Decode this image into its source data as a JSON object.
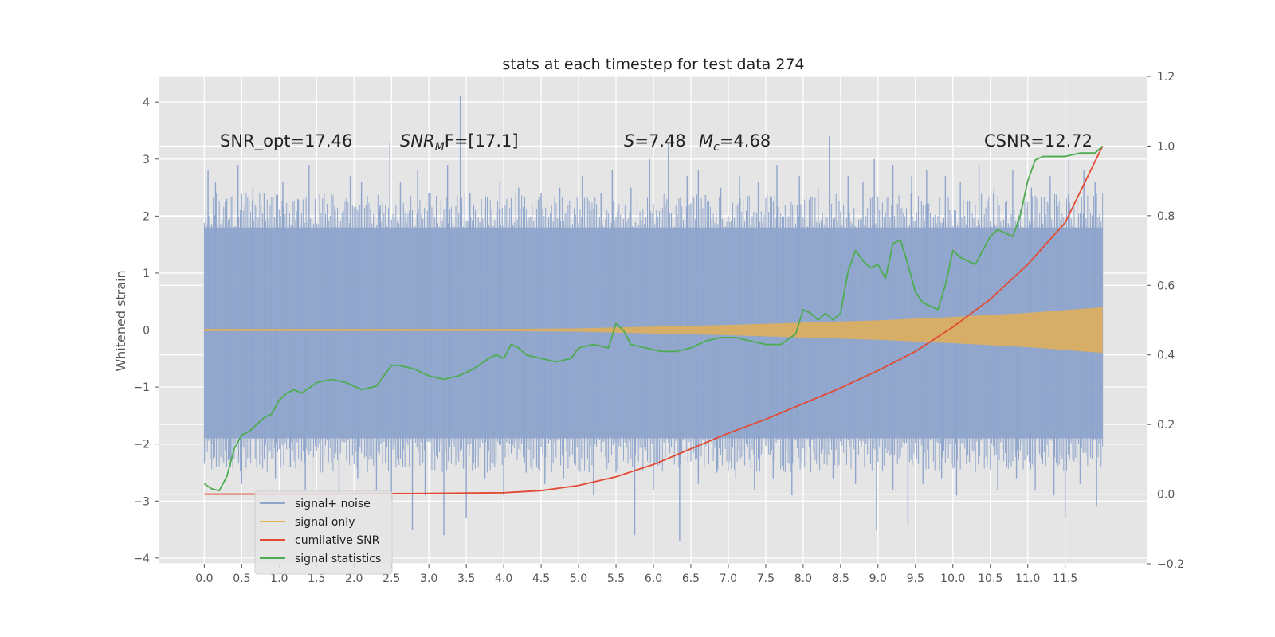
{
  "chart_data": {
    "type": "line",
    "title": "stats at each timestep for test data 274",
    "ylabel": "Whitened strain",
    "xlabel": "",
    "xlim": [
      -0.6,
      12.6
    ],
    "ylim": [
      -4.1,
      4.45
    ],
    "y2lim": [
      -0.2,
      1.2
    ],
    "x_ticks": [
      "0.0",
      "0.5",
      "1.0",
      "1.5",
      "2.0",
      "2.5",
      "3.0",
      "3.5",
      "4.0",
      "4.5",
      "5.0",
      "5.5",
      "6.0",
      "6.5",
      "7.0",
      "7.5",
      "8.0",
      "8.5",
      "9.0",
      "9.5",
      "10.0",
      "10.5",
      "11.0",
      "11.5"
    ],
    "y_ticks": [
      "4",
      "3",
      "2",
      "1",
      "0",
      "−1",
      "−2",
      "−3",
      "−4"
    ],
    "y2_ticks": [
      "1.2",
      "1.0",
      "0.8",
      "0.6",
      "0.4",
      "0.2",
      "0.0",
      "−0.2"
    ],
    "grid": true,
    "legend_position": "lower-left",
    "annotations": {
      "snr_opt": "SNR_opt=17.46",
      "snr_mf_main": "SNR",
      "snr_mf_sub": "M",
      "snr_mf_rest": "F=[17.1]",
      "s_sym": "S",
      "s_val": "=7.48",
      "mc_sym": "M",
      "mc_sub": "c",
      "mc_val": "=4.68",
      "csnr": "CSNR=12.72"
    },
    "series": [
      {
        "name": "signal+ noise",
        "color": "#8fa5cc",
        "axis": "left",
        "x_range": [
          0.0,
          12.0
        ],
        "band_envelope": {
          "x": [
            0.0,
            12.0
          ],
          "upper": [
            1.8,
            1.8
          ],
          "lower": [
            -1.9,
            -1.9
          ]
        },
        "spikes": [
          {
            "x": 0.05,
            "y": 2.8
          },
          {
            "x": 0.15,
            "y": 2.6
          },
          {
            "x": 0.3,
            "y": 2.3
          },
          {
            "x": 0.45,
            "y": 2.9
          },
          {
            "x": 0.65,
            "y": 2.5
          },
          {
            "x": 0.8,
            "y": 2.4
          },
          {
            "x": 1.05,
            "y": 2.6
          },
          {
            "x": 1.25,
            "y": 2.3
          },
          {
            "x": 1.4,
            "y": 2.9
          },
          {
            "x": 1.6,
            "y": 2.4
          },
          {
            "x": 1.75,
            "y": 2.1
          },
          {
            "x": 1.95,
            "y": 2.7
          },
          {
            "x": 2.1,
            "y": 2.6
          },
          {
            "x": 2.35,
            "y": 2.2
          },
          {
            "x": 2.48,
            "y": 3.3
          },
          {
            "x": 2.62,
            "y": 2.6
          },
          {
            "x": 2.85,
            "y": 2.8
          },
          {
            "x": 3.0,
            "y": 2.4
          },
          {
            "x": 3.25,
            "y": 2.9
          },
          {
            "x": 3.42,
            "y": 4.1
          },
          {
            "x": 3.55,
            "y": 2.4
          },
          {
            "x": 3.7,
            "y": 2.3
          },
          {
            "x": 3.95,
            "y": 2.6
          },
          {
            "x": 4.2,
            "y": 2.5
          },
          {
            "x": 4.5,
            "y": 2.4
          },
          {
            "x": 4.75,
            "y": 2.5
          },
          {
            "x": 5.05,
            "y": 2.7
          },
          {
            "x": 5.3,
            "y": 2.4
          },
          {
            "x": 5.45,
            "y": 2.8
          },
          {
            "x": 5.7,
            "y": 2.5
          },
          {
            "x": 5.95,
            "y": 3.0
          },
          {
            "x": 6.2,
            "y": 3.3
          },
          {
            "x": 6.45,
            "y": 2.7
          },
          {
            "x": 6.6,
            "y": 2.8
          },
          {
            "x": 6.9,
            "y": 2.5
          },
          {
            "x": 7.15,
            "y": 2.7
          },
          {
            "x": 7.4,
            "y": 2.6
          },
          {
            "x": 7.65,
            "y": 2.9
          },
          {
            "x": 7.95,
            "y": 2.7
          },
          {
            "x": 8.2,
            "y": 2.5
          },
          {
            "x": 8.35,
            "y": 3.4
          },
          {
            "x": 8.6,
            "y": 2.7
          },
          {
            "x": 8.8,
            "y": 2.6
          },
          {
            "x": 8.95,
            "y": 3.0
          },
          {
            "x": 9.2,
            "y": 2.9
          },
          {
            "x": 9.45,
            "y": 2.7
          },
          {
            "x": 9.65,
            "y": 2.8
          },
          {
            "x": 9.9,
            "y": 2.7
          },
          {
            "x": 10.1,
            "y": 2.6
          },
          {
            "x": 10.35,
            "y": 2.9
          },
          {
            "x": 10.55,
            "y": 2.5
          },
          {
            "x": 10.8,
            "y": 2.8
          },
          {
            "x": 11.05,
            "y": 2.5
          },
          {
            "x": 11.3,
            "y": 2.7
          },
          {
            "x": 11.55,
            "y": 3.0
          },
          {
            "x": 11.75,
            "y": 2.8
          },
          {
            "x": 11.9,
            "y": 2.6
          },
          {
            "x": 0.1,
            "y": -2.0
          },
          {
            "x": 0.35,
            "y": -2.4
          },
          {
            "x": 0.5,
            "y": -2.7
          },
          {
            "x": 0.7,
            "y": -2.3
          },
          {
            "x": 0.95,
            "y": -2.6
          },
          {
            "x": 1.15,
            "y": -2.4
          },
          {
            "x": 1.35,
            "y": -2.8
          },
          {
            "x": 1.55,
            "y": -2.5
          },
          {
            "x": 1.8,
            "y": -2.9
          },
          {
            "x": 2.05,
            "y": -2.6
          },
          {
            "x": 2.3,
            "y": -2.8
          },
          {
            "x": 2.5,
            "y": -3.0
          },
          {
            "x": 2.65,
            "y": -2.4
          },
          {
            "x": 2.78,
            "y": -3.5
          },
          {
            "x": 2.95,
            "y": -2.9
          },
          {
            "x": 3.2,
            "y": -3.6
          },
          {
            "x": 3.5,
            "y": -3.3
          },
          {
            "x": 3.75,
            "y": -2.6
          },
          {
            "x": 4.0,
            "y": -2.9
          },
          {
            "x": 4.3,
            "y": -2.5
          },
          {
            "x": 4.55,
            "y": -2.7
          },
          {
            "x": 4.8,
            "y": -2.6
          },
          {
            "x": 5.2,
            "y": -2.9
          },
          {
            "x": 5.5,
            "y": -2.5
          },
          {
            "x": 5.75,
            "y": -3.6
          },
          {
            "x": 6.0,
            "y": -2.8
          },
          {
            "x": 6.35,
            "y": -3.7
          },
          {
            "x": 6.6,
            "y": -2.7
          },
          {
            "x": 6.85,
            "y": -2.5
          },
          {
            "x": 7.1,
            "y": -2.6
          },
          {
            "x": 7.35,
            "y": -2.8
          },
          {
            "x": 7.6,
            "y": -2.6
          },
          {
            "x": 7.85,
            "y": -2.9
          },
          {
            "x": 8.1,
            "y": -2.5
          },
          {
            "x": 8.4,
            "y": -2.6
          },
          {
            "x": 8.7,
            "y": -2.7
          },
          {
            "x": 8.98,
            "y": -3.5
          },
          {
            "x": 9.2,
            "y": -2.8
          },
          {
            "x": 9.4,
            "y": -3.4
          },
          {
            "x": 9.6,
            "y": -2.7
          },
          {
            "x": 9.85,
            "y": -2.6
          },
          {
            "x": 10.05,
            "y": -2.9
          },
          {
            "x": 10.3,
            "y": -2.5
          },
          {
            "x": 10.6,
            "y": -2.8
          },
          {
            "x": 10.85,
            "y": -2.6
          },
          {
            "x": 11.1,
            "y": -2.8
          },
          {
            "x": 11.35,
            "y": -2.9
          },
          {
            "x": 11.5,
            "y": -3.3
          },
          {
            "x": 11.7,
            "y": -2.7
          },
          {
            "x": 11.92,
            "y": -3.1
          },
          {
            "x": 6.0,
            "y": 1.4
          },
          {
            "x": 6.0,
            "y": -1.6
          }
        ]
      },
      {
        "name": "signal only",
        "color": "#e8b04e",
        "axis": "left",
        "band_envelope": {
          "x": [
            0.0,
            4.0,
            5.0,
            6.0,
            7.0,
            8.0,
            9.0,
            10.0,
            11.0,
            12.0
          ],
          "upper": [
            0.02,
            0.02,
            0.03,
            0.06,
            0.09,
            0.13,
            0.17,
            0.23,
            0.3,
            0.4
          ],
          "lower": [
            -0.02,
            -0.02,
            -0.03,
            -0.06,
            -0.09,
            -0.13,
            -0.17,
            -0.23,
            -0.3,
            -0.4
          ]
        }
      },
      {
        "name": "cumilative SNR",
        "color": "#e24a33",
        "axis": "right",
        "x": [
          0.0,
          1.0,
          2.0,
          3.0,
          4.0,
          4.5,
          5.0,
          5.5,
          6.0,
          6.5,
          7.0,
          7.5,
          8.0,
          8.5,
          9.0,
          9.5,
          10.0,
          10.5,
          11.0,
          11.5,
          12.0
        ],
        "y": [
          0.0,
          0.0,
          0.001,
          0.002,
          0.004,
          0.01,
          0.025,
          0.05,
          0.085,
          0.13,
          0.175,
          0.215,
          0.26,
          0.305,
          0.355,
          0.41,
          0.48,
          0.56,
          0.66,
          0.78,
          1.0
        ]
      },
      {
        "name": "signal statistics",
        "color": "#4dac4f",
        "axis": "right",
        "x": [
          0.0,
          0.1,
          0.2,
          0.3,
          0.4,
          0.5,
          0.6,
          0.8,
          0.9,
          1.0,
          1.1,
          1.2,
          1.3,
          1.5,
          1.7,
          1.9,
          2.1,
          2.3,
          2.5,
          2.6,
          2.8,
          2.9,
          3.0,
          3.2,
          3.4,
          3.6,
          3.8,
          3.9,
          4.0,
          4.1,
          4.2,
          4.3,
          4.5,
          4.7,
          4.9,
          5.0,
          5.2,
          5.4,
          5.5,
          5.6,
          5.7,
          5.9,
          6.1,
          6.3,
          6.5,
          6.7,
          6.9,
          7.1,
          7.3,
          7.5,
          7.7,
          7.9,
          8.0,
          8.1,
          8.2,
          8.3,
          8.4,
          8.5,
          8.6,
          8.7,
          8.8,
          8.9,
          9.0,
          9.1,
          9.2,
          9.3,
          9.4,
          9.5,
          9.6,
          9.7,
          9.8,
          9.9,
          10.0,
          10.1,
          10.3,
          10.5,
          10.6,
          10.7,
          10.8,
          10.9,
          11.0,
          11.1,
          11.2,
          11.3,
          11.5,
          11.7,
          11.9,
          12.0
        ],
        "y": [
          0.03,
          0.015,
          0.01,
          0.05,
          0.13,
          0.17,
          0.18,
          0.22,
          0.23,
          0.27,
          0.29,
          0.3,
          0.29,
          0.32,
          0.33,
          0.32,
          0.3,
          0.31,
          0.37,
          0.37,
          0.36,
          0.35,
          0.34,
          0.33,
          0.34,
          0.36,
          0.39,
          0.4,
          0.39,
          0.43,
          0.42,
          0.4,
          0.39,
          0.38,
          0.39,
          0.42,
          0.43,
          0.42,
          0.49,
          0.47,
          0.43,
          0.42,
          0.41,
          0.41,
          0.42,
          0.44,
          0.45,
          0.45,
          0.44,
          0.43,
          0.43,
          0.46,
          0.53,
          0.52,
          0.5,
          0.52,
          0.5,
          0.52,
          0.64,
          0.7,
          0.67,
          0.65,
          0.66,
          0.62,
          0.72,
          0.73,
          0.66,
          0.58,
          0.55,
          0.54,
          0.53,
          0.6,
          0.7,
          0.68,
          0.66,
          0.74,
          0.76,
          0.75,
          0.74,
          0.8,
          0.9,
          0.96,
          0.97,
          0.97,
          0.97,
          0.98,
          0.98,
          1.0
        ]
      }
    ]
  }
}
